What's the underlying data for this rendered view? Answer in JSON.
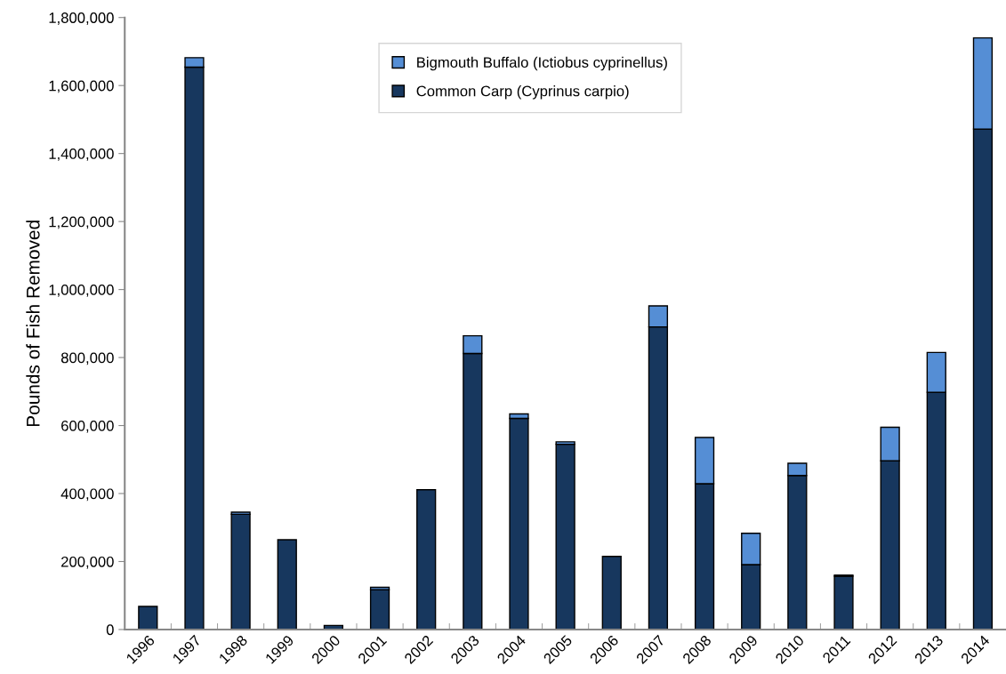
{
  "chart_data": {
    "type": "bar",
    "stacked": true,
    "ylabel": "Pounds of Fish Removed",
    "categories": [
      "1996",
      "1997",
      "1998",
      "1999",
      "2000",
      "2001",
      "2002",
      "2003",
      "2004",
      "2005",
      "2006",
      "2007",
      "2008",
      "2009",
      "2010",
      "2011",
      "2012",
      "2013",
      "2014"
    ],
    "series": [
      {
        "name": "Common Carp (Cyprinus carpio)",
        "color": "#17375e",
        "values": [
          68000,
          1654000,
          339000,
          264000,
          12000,
          117000,
          411000,
          812000,
          621000,
          545000,
          215000,
          890000,
          429000,
          191000,
          453000,
          157000,
          496000,
          698000,
          1472000
        ]
      },
      {
        "name": "Bigmouth Buffalo (Ictiobus cyprinellus)",
        "color": "#558ed5",
        "values": [
          null,
          28000,
          6000,
          null,
          null,
          7000,
          null,
          52000,
          13000,
          7000,
          null,
          62000,
          136000,
          92000,
          36000,
          3000,
          99000,
          117000,
          268000
        ]
      }
    ],
    "ylim": [
      0,
      1800000
    ],
    "yticks": [
      0,
      {
        "value": 200000,
        "label": "200,000"
      },
      {
        "value": 400000,
        "label": "400,000"
      },
      {
        "value": 600000,
        "label": "600,000"
      },
      {
        "value": 800000,
        "label": "800,000"
      },
      {
        "value": 1000000,
        "label": "1,000,000"
      },
      {
        "value": 1200000,
        "label": "1,200,000"
      },
      {
        "value": 1400000,
        "label": "1,400,000"
      },
      {
        "value": 1600000,
        "label": "1,600,000"
      },
      {
        "value": 1800000,
        "label": "1,800,000"
      }
    ],
    "grid": false,
    "legend": "top"
  }
}
